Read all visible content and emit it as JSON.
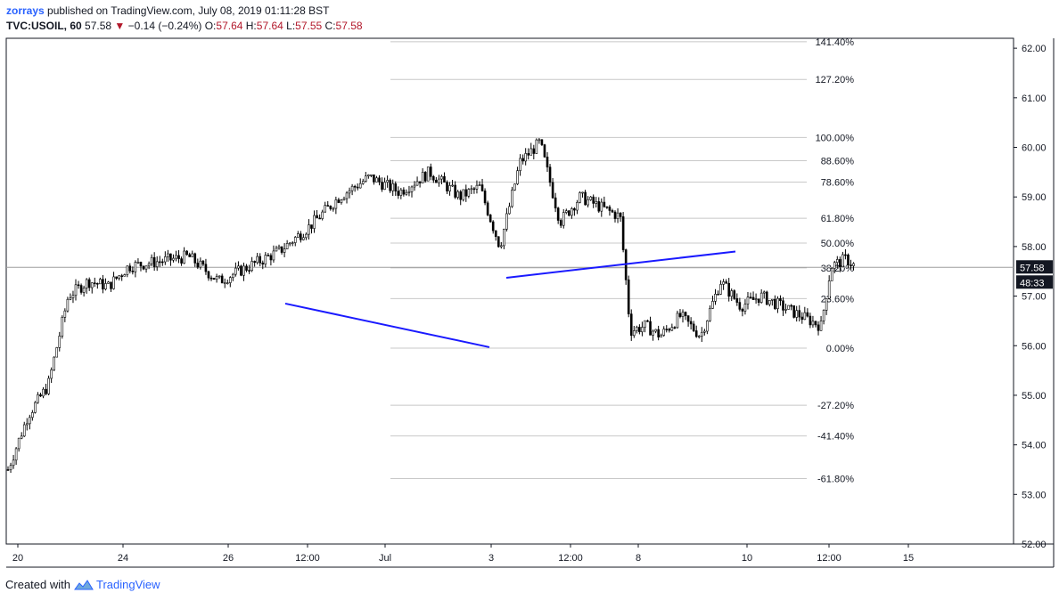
{
  "header": {
    "author": "zorrays",
    "published": " published on TradingView.com, July 08, 2019 01:11:28 BST",
    "symbol": "TVC:USOIL, 60",
    "last": "57.58",
    "down_arrow": "▼",
    "change": "−0.14 (−0.24%)",
    "o_label": "O:",
    "o_val": "57.64",
    "h_label": "H:",
    "h_val": "57.64",
    "l_label": "L:",
    "l_val": "57.55",
    "c_label": "C:",
    "c_val": "57.58"
  },
  "footer": {
    "created_with": "Created with",
    "brand": "TradingView"
  },
  "colors": {
    "border": "#131722",
    "grid": "#c8c8c8",
    "trendline": "#1a1aff",
    "candle": "#000000",
    "price_box": "#131722"
  },
  "chart_data": {
    "type": "candlestick",
    "symbol": "TVC:USOIL",
    "interval": "60",
    "ylim": [
      52.0,
      62.2
    ],
    "y_ticks": [
      "62.00",
      "61.00",
      "60.00",
      "59.00",
      "58.00",
      "57.00",
      "56.00",
      "55.00",
      "54.00",
      "53.00",
      "52.00"
    ],
    "x_ticks": [
      "20",
      "24",
      "26",
      "12:00",
      "Jul",
      "3",
      "12:00",
      "8",
      "10",
      "12:00",
      "15"
    ],
    "last_price": "57.58",
    "countdown": "48:33",
    "fib_levels": [
      {
        "label": "141.40%",
        "price": 62.13
      },
      {
        "label": "127.20%",
        "price": 61.37
      },
      {
        "label": "100.00%",
        "price": 60.2
      },
      {
        "label": "88.60%",
        "price": 59.73
      },
      {
        "label": "78.60%",
        "price": 59.3
      },
      {
        "label": "61.80%",
        "price": 58.57
      },
      {
        "label": "50.00%",
        "price": 58.07
      },
      {
        "label": "38.20%",
        "price": 57.57
      },
      {
        "label": "23.60%",
        "price": 56.95
      },
      {
        "label": "0.00%",
        "price": 55.95
      },
      {
        "label": "-27.20%",
        "price": 54.8
      },
      {
        "label": "-41.40%",
        "price": 54.18
      },
      {
        "label": "-61.80%",
        "price": 53.32
      }
    ],
    "price_path": [
      [
        0,
        53.5
      ],
      [
        0.02,
        54.6
      ],
      [
        0.04,
        55.2
      ],
      [
        0.06,
        57.0
      ],
      [
        0.08,
        57.3
      ],
      [
        0.1,
        57.2
      ],
      [
        0.12,
        57.6
      ],
      [
        0.15,
        57.7
      ],
      [
        0.18,
        57.8
      ],
      [
        0.21,
        57.3
      ],
      [
        0.24,
        57.6
      ],
      [
        0.27,
        57.9
      ],
      [
        0.3,
        58.4
      ],
      [
        0.33,
        59.0
      ],
      [
        0.36,
        59.4
      ],
      [
        0.39,
        59.1
      ],
      [
        0.42,
        59.5
      ],
      [
        0.45,
        59.0
      ],
      [
        0.47,
        59.2
      ],
      [
        0.49,
        58.0
      ],
      [
        0.51,
        59.7
      ],
      [
        0.53,
        60.1
      ],
      [
        0.55,
        58.5
      ],
      [
        0.57,
        59.0
      ],
      [
        0.59,
        58.8
      ],
      [
        0.61,
        58.6
      ],
      [
        0.62,
        56.3
      ],
      [
        0.635,
        56.4
      ],
      [
        0.65,
        56.2
      ],
      [
        0.67,
        56.6
      ],
      [
        0.69,
        56.2
      ],
      [
        0.71,
        57.3
      ],
      [
        0.73,
        56.8
      ],
      [
        0.75,
        57.0
      ],
      [
        0.77,
        56.8
      ],
      [
        0.79,
        56.6
      ],
      [
        0.81,
        56.4
      ],
      [
        0.82,
        57.6
      ],
      [
        0.835,
        57.75
      ],
      [
        0.845,
        57.58
      ]
    ],
    "trendlines": [
      {
        "from": {
          "x": "3",
          "y": 57.37
        },
        "to": {
          "x": "10",
          "y": 57.9
        }
      },
      {
        "from": {
          "x": "3",
          "y": 55.97
        },
        "to": {
          "x": "12:00",
          "y": 56.85
        }
      }
    ]
  }
}
